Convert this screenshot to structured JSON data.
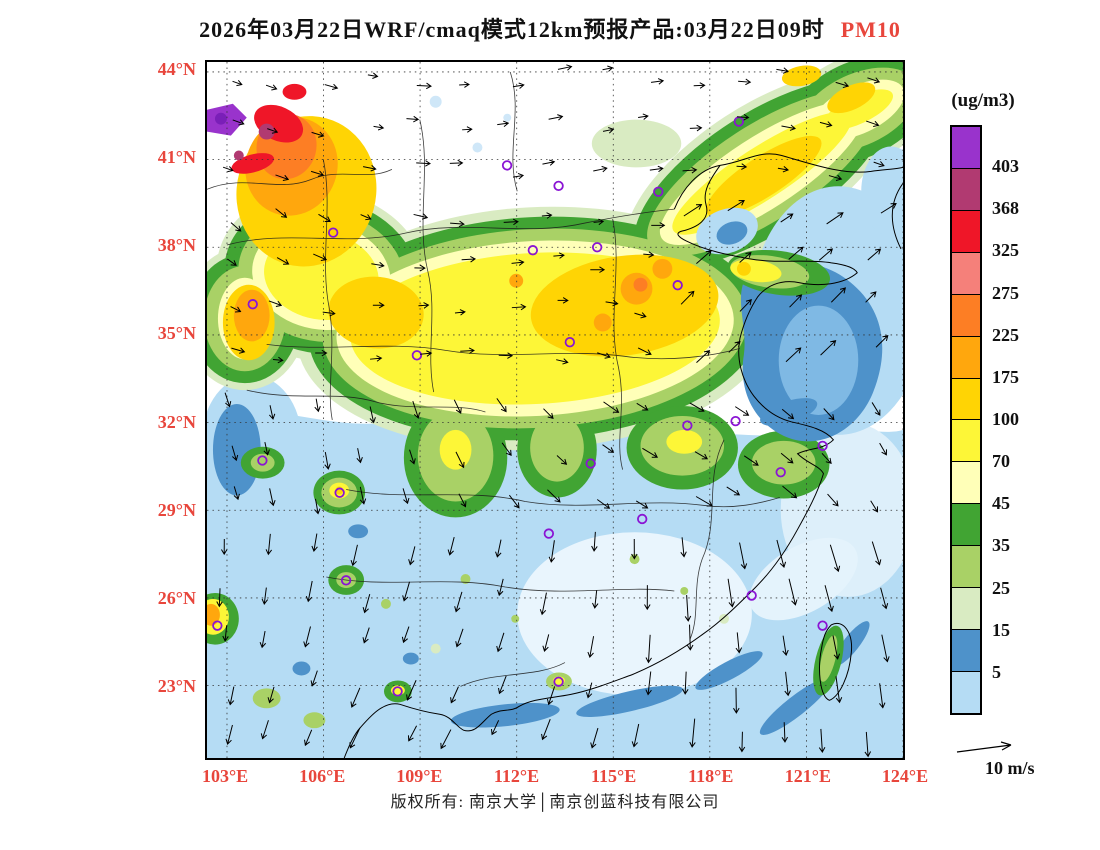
{
  "title": {
    "text": "2026年03月22日WRF/cmaq模式12km预报产品:03月22日09时",
    "pollutant": "PM10"
  },
  "axes": {
    "x_tick_labels": [
      "103°E",
      "106°E",
      "109°E",
      "112°E",
      "115°E",
      "118°E",
      "121°E",
      "124°E"
    ],
    "x_tick_lons": [
      103,
      106,
      109,
      112,
      115,
      118,
      121,
      124
    ],
    "y_tick_labels": [
      "44°N",
      "41°N",
      "38°N",
      "35°N",
      "32°N",
      "29°N",
      "26°N",
      "23°N"
    ],
    "y_tick_lats": [
      44,
      41,
      38,
      35,
      32,
      29,
      26,
      23
    ],
    "axis_label_color": "#e8463c"
  },
  "legend": {
    "unit_label": "(ug/m3)",
    "levels": [
      403,
      368,
      325,
      275,
      225,
      175,
      100,
      70,
      45,
      35,
      25,
      15,
      5
    ],
    "colors": [
      "#9933cc",
      "#b13a71",
      "#ef1628",
      "#f5807a",
      "#fd7e24",
      "#ffa70d",
      "#ffd404",
      "#fdf637",
      "#ffffb8",
      "#41a433",
      "#a9d166",
      "#d9ebc2",
      "#4e92ca",
      "#b5dcf4"
    ]
  },
  "wind_ref": {
    "label": "10 m/s"
  },
  "footer": {
    "copyright": "版权所有: 南京大学│南京创蓝科技有限公司"
  },
  "map": {
    "marker_color": "#8a14d4",
    "station_markers": [
      [
        111.7,
        40.8
      ],
      [
        113.3,
        40.1
      ],
      [
        118.9,
        42.3
      ],
      [
        116.4,
        39.9
      ],
      [
        112.5,
        37.9
      ],
      [
        114.5,
        38.0
      ],
      [
        106.3,
        38.5
      ],
      [
        103.8,
        36.05
      ],
      [
        108.9,
        34.3
      ],
      [
        113.65,
        34.75
      ],
      [
        117.0,
        36.7
      ],
      [
        117.3,
        31.9
      ],
      [
        118.8,
        32.05
      ],
      [
        121.5,
        31.2
      ],
      [
        120.2,
        30.3
      ],
      [
        114.3,
        30.6
      ],
      [
        113.0,
        28.2
      ],
      [
        115.9,
        28.7
      ],
      [
        106.5,
        29.6
      ],
      [
        104.1,
        30.7
      ],
      [
        106.7,
        26.6
      ],
      [
        102.7,
        25.05
      ],
      [
        108.3,
        22.8
      ],
      [
        113.3,
        23.13
      ],
      [
        119.3,
        26.08
      ],
      [
        121.5,
        25.05
      ]
    ]
  },
  "chart_data": {
    "type": "heatmap",
    "subtype": "filled-contour geographic field with wind vectors",
    "title": "2026年03月22日WRF/cmaq模式12km预报产品:03月22日09时 PM10",
    "variable": "PM10",
    "unit": "ug/m3",
    "model": "WRF/cmaq 12km",
    "forecast_date": "2026年03月22日",
    "valid_time": "03月22日09时",
    "lon_range_deg_e": [
      102.4,
      124.0
    ],
    "lat_range_deg_n": [
      20.5,
      44.3
    ],
    "x_tick_labels": [
      "103°E",
      "106°E",
      "109°E",
      "112°E",
      "115°E",
      "118°E",
      "121°E",
      "124°E"
    ],
    "y_tick_labels": [
      "44°N",
      "41°N",
      "38°N",
      "35°N",
      "32°N",
      "29°N",
      "26°N",
      "23°N"
    ],
    "contour_levels_ascending": [
      5,
      15,
      25,
      35,
      45,
      70,
      100,
      175,
      225,
      275,
      325,
      368,
      403
    ],
    "palette_low_to_high": [
      "#b5dcf4",
      "#4e92ca",
      "#d9ebc2",
      "#a9d166",
      "#41a433",
      "#ffffb8",
      "#fdf637",
      "#ffd404",
      "#ffa70d",
      "#fd7e24",
      "#f5807a",
      "#ef1628",
      "#b13a71",
      "#9933cc"
    ],
    "legend_position": "right",
    "graticule": "dotted grid every 3 degrees",
    "wind_reference_vector": {
      "speed": 10,
      "unit": "m/s"
    },
    "regions_estimated": [
      {
        "area": "NW hotspot, Gansu/Ningxia/Inner Mongolia (103-108E, 38-43N)",
        "pm10": "175-403+, purple core at NW corner"
      },
      {
        "area": "North China Plain and central China (106-120E, 32-39N)",
        "pm10": "70-225 (broad yellow-gold mass, orange spots ~115E 36N)"
      },
      {
        "area": "Northeast band toward Liaoning/Chifeng (112-124E, 39-44N)",
        "pm10": "45-175"
      },
      {
        "area": "Yangtze valley green fringe (28-32N)",
        "pm10": "25-70"
      },
      {
        "area": "Southern China (22-29N)",
        "pm10": "5-45 with small 45-100 urban spots (Chongqing, Guiyang, Kunming, Nanning, Guangzhou)"
      },
      {
        "area": "Bohai / Yellow Sea / East China Sea",
        "pm10": "5-25 (steel-blue patch over Yellow Sea)"
      }
    ]
  }
}
